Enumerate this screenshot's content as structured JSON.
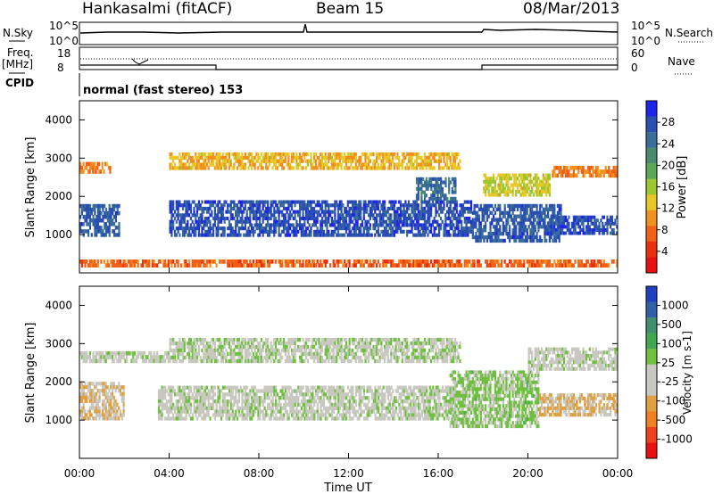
{
  "header": {
    "station": "Hankasalmi (fitACF)",
    "beam": "Beam 15",
    "date": "08/Mar/2013"
  },
  "top_panels": {
    "nsky_label": "N.Sky",
    "nsky_ticks": [
      "10^5",
      "10^0"
    ],
    "nsearch_label": "N.Search",
    "nsearch_ticks": [
      "10^5",
      "10^0"
    ],
    "freq_label": "Freq.",
    "freq_unit": "[MHz]",
    "freq_ticks": [
      "18",
      "8"
    ],
    "nave_label": "Nave",
    "nave_ticks": [
      "60",
      "0"
    ],
    "cpid_label": "CPID",
    "cpid_text": "normal (fast stereo) 153"
  },
  "colors": {
    "power_scale": [
      "#1e24e8",
      "#2a4fb0",
      "#3a6e9a",
      "#4a8a6e",
      "#5aa85a",
      "#9ac830",
      "#e8c828",
      "#f09020",
      "#f06018",
      "#e83010",
      "#e81010"
    ],
    "velocity_scale": [
      "#2040c0",
      "#3060a8",
      "#409070",
      "#40a850",
      "#70c040",
      "#c8c8c0",
      "#c8c8c0",
      "#e0a040",
      "#f08020",
      "#f04020",
      "#e81010"
    ],
    "velocity_grey": "#c8c8c0"
  },
  "chart_data": [
    {
      "type": "heatmap",
      "panel": "power",
      "ylabel": "Slant Range [km]",
      "yticks": [
        "1000",
        "2000",
        "3000",
        "4000"
      ],
      "ylim": [
        0,
        4500
      ],
      "xlim": [
        0,
        24
      ],
      "colorbar_label": "Power [dB]",
      "colorbar_ticks": [
        "28",
        "24",
        "20",
        "16",
        "12",
        "8",
        "4"
      ],
      "colorbar_range": [
        0,
        30
      ],
      "regions": [
        {
          "t0": 0.0,
          "t1": 1.8,
          "r0": 950,
          "r1": 1800,
          "value": 26
        },
        {
          "t0": 0.0,
          "t1": 1.4,
          "r0": 2600,
          "r1": 2900,
          "value": 8
        },
        {
          "t0": 4.0,
          "t1": 17.5,
          "r0": 950,
          "r1": 1900,
          "value": 27
        },
        {
          "t0": 4.0,
          "t1": 17.0,
          "r0": 2700,
          "r1": 3150,
          "value": 11
        },
        {
          "t0": 15.0,
          "t1": 16.8,
          "r0": 1900,
          "r1": 2500,
          "value": 24
        },
        {
          "t0": 17.5,
          "t1": 21.5,
          "r0": 800,
          "r1": 1800,
          "value": 26
        },
        {
          "t0": 21.0,
          "t1": 24.0,
          "r0": 1000,
          "r1": 1500,
          "value": 27
        },
        {
          "t0": 18.0,
          "t1": 21.0,
          "r0": 2000,
          "r1": 2600,
          "value": 13
        },
        {
          "t0": 21.0,
          "t1": 24.0,
          "r0": 2500,
          "r1": 2800,
          "value": 8
        },
        {
          "t0": 0.0,
          "t1": 24.0,
          "r0": 150,
          "r1": 350,
          "value": 6
        }
      ]
    },
    {
      "type": "heatmap",
      "panel": "velocity",
      "ylabel": "Slant Range [km]",
      "yticks": [
        "1000",
        "2000",
        "3000",
        "4000"
      ],
      "ylim": [
        0,
        4500
      ],
      "xlim": [
        0,
        24
      ],
      "xlabel": "Time UT",
      "xticks": [
        "00:00",
        "04:00",
        "08:00",
        "12:00",
        "16:00",
        "20:00",
        "00:00"
      ],
      "colorbar_label": "Velocity [m s-1]",
      "colorbar_ticks": [
        "1000",
        "500",
        "100",
        "25",
        "-25",
        "-100",
        "-500",
        "-1000"
      ],
      "colorbar_range": [
        -1200,
        1200
      ],
      "regions": [
        {
          "t0": 0.0,
          "t1": 2.0,
          "r0": 1000,
          "r1": 2000,
          "value": -300
        },
        {
          "t0": 0.0,
          "t1": 4.0,
          "r0": 2500,
          "r1": 2800,
          "value": 0
        },
        {
          "t0": 3.5,
          "t1": 16.8,
          "r0": 1000,
          "r1": 1900,
          "value": 0
        },
        {
          "t0": 4.0,
          "t1": 17.0,
          "r0": 2500,
          "r1": 3150,
          "value": 50
        },
        {
          "t0": 16.5,
          "t1": 20.5,
          "r0": 800,
          "r1": 2300,
          "value": 150
        },
        {
          "t0": 20.5,
          "t1": 24.0,
          "r0": 1100,
          "r1": 1700,
          "value": -400
        },
        {
          "t0": 20.0,
          "t1": 24.0,
          "r0": 2300,
          "r1": 2900,
          "value": 0
        }
      ]
    }
  ]
}
